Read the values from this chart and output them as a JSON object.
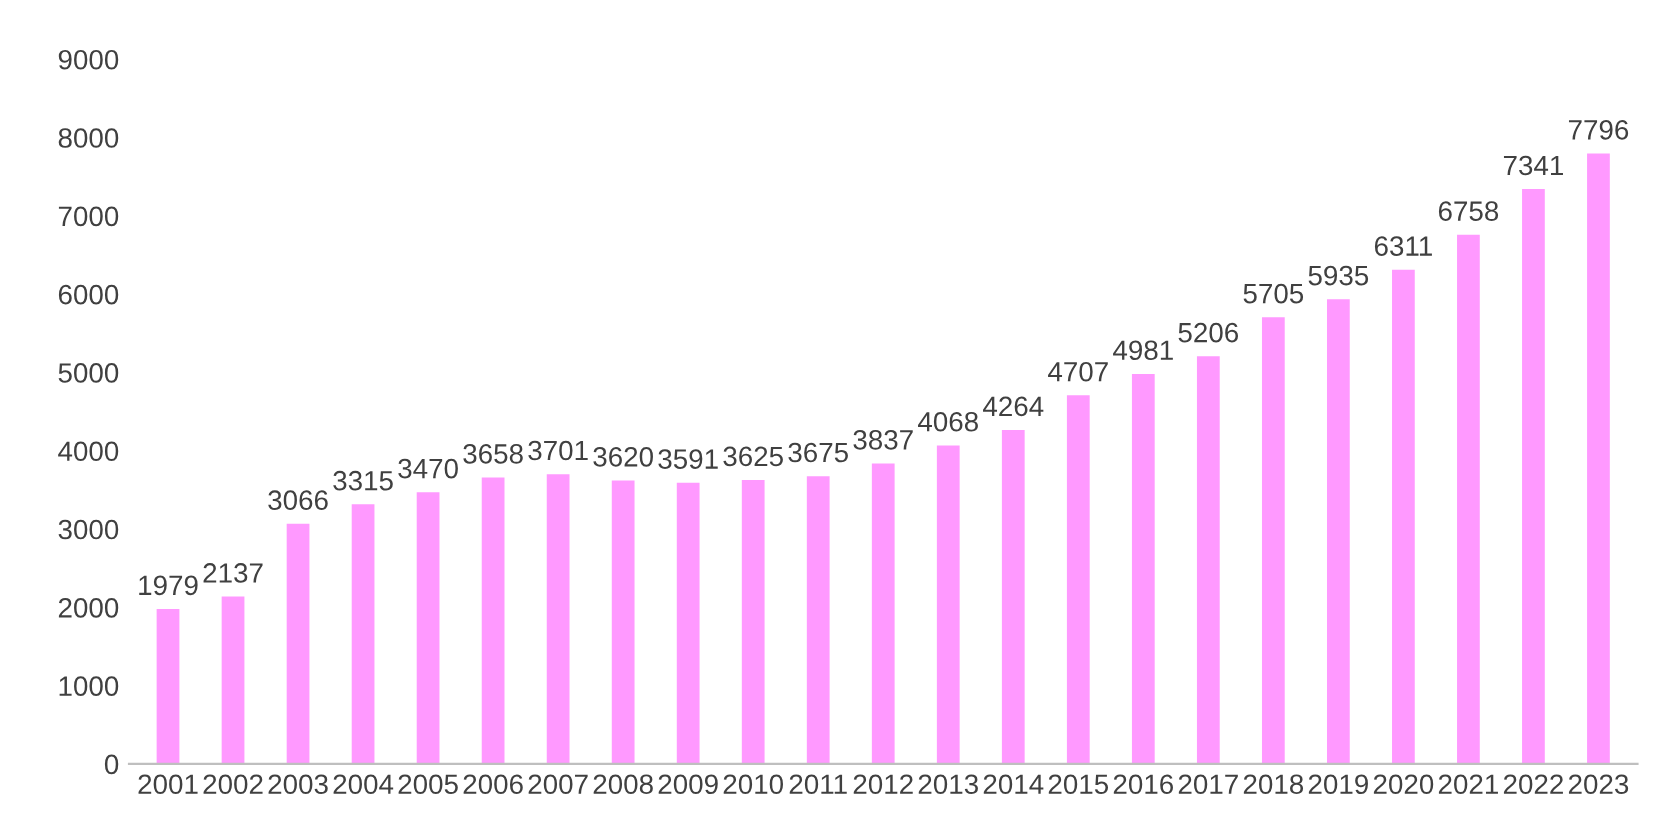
{
  "chart_data": {
    "type": "bar",
    "categories": [
      "2001",
      "2002",
      "2003",
      "2004",
      "2005",
      "2006",
      "2007",
      "2008",
      "2009",
      "2010",
      "2011",
      "2012",
      "2013",
      "2014",
      "2015",
      "2016",
      "2017",
      "2018",
      "2019",
      "2020",
      "2021",
      "2022",
      "2023"
    ],
    "values": [
      1979,
      2137,
      3066,
      3315,
      3470,
      3658,
      3701,
      3620,
      3591,
      3625,
      3675,
      3837,
      4068,
      4264,
      4707,
      4981,
      5206,
      5705,
      5935,
      6311,
      6758,
      7341,
      7796
    ],
    "color": "#ff99ff",
    "ylim": [
      0,
      9000
    ],
    "yticks": [
      0,
      1000,
      2000,
      3000,
      4000,
      5000,
      6000,
      7000,
      8000,
      9000
    ],
    "grid": false,
    "data_labels": true
  }
}
